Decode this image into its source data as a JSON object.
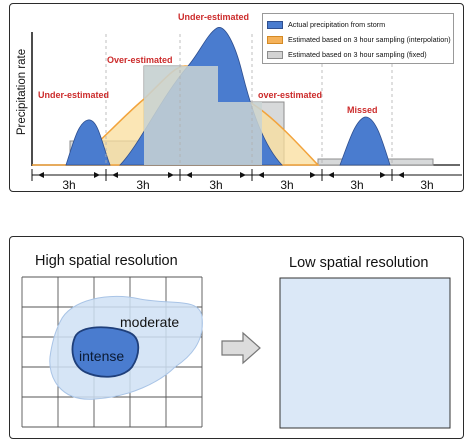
{
  "top_panel": {
    "y_axis_label": "Precipitation rate",
    "annotations": {
      "under_left": "Under-estimated",
      "over": "Over-estimated",
      "under_peak": "Under-estimated",
      "over_right": "over-estimated",
      "missed": "Missed"
    },
    "legend": [
      {
        "label": "Actual precipitation from storm",
        "color": "#4a7ccf"
      },
      {
        "label": "Estimated based on 3 hour sampling (interpolation)",
        "color": "#f5b25a"
      },
      {
        "label": "Estimated based on 3 hour sampling (fixed)",
        "color": "#d3d3d3"
      }
    ],
    "intervals": [
      "3h",
      "3h",
      "3h",
      "3h",
      "3h",
      "3h"
    ]
  },
  "bottom_panel": {
    "high_res_title": "High spatial resolution",
    "low_res_title": "Low spatial resolution",
    "moderate_label": "moderate",
    "intense_label": "intense",
    "colors": {
      "grid_line": "#555555",
      "moderate_fill": "#cfe0f5",
      "intense_fill": "#4a7ccf",
      "low_res_fill": "#dbe8f7"
    }
  }
}
